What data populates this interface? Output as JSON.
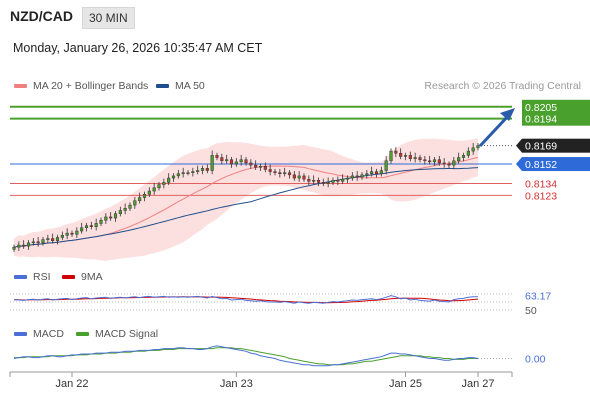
{
  "header": {
    "pair": "NZD/CAD",
    "timeframe": "30 MIN",
    "datetime": "Monday, January 26, 2026 10:35:47 AM CET"
  },
  "legend": {
    "ma20": "MA 20 + Bollinger Bands",
    "ma50": "MA 50",
    "credit": "Research © 2026 Trading Central",
    "colors": {
      "ma20": "#f08080",
      "ma50": "#1f4e8c"
    }
  },
  "rsi_legend": {
    "rsi": "RSI",
    "ma": "9MA",
    "colors": {
      "rsi": "#4a6fd6",
      "ma": "#d00000"
    }
  },
  "macd_legend": {
    "macd": "MACD",
    "signal": "MACD Signal",
    "colors": {
      "macd": "#4a6fd6",
      "signal": "#4aa02c"
    }
  },
  "chart_data": [
    {
      "type": "candlestick",
      "name": "price",
      "x_ticks": [
        "Jan 22",
        "Jan 23",
        "Jan 25",
        "Jan 27"
      ],
      "ylim": [
        0.8065,
        0.8215
      ],
      "close": [
        0.8075,
        0.8077,
        0.8076,
        0.8079,
        0.808,
        0.8079,
        0.8082,
        0.8083,
        0.8081,
        0.8084,
        0.8086,
        0.8088,
        0.8087,
        0.809,
        0.8093,
        0.8095,
        0.8094,
        0.8097,
        0.81,
        0.8103,
        0.8102,
        0.8106,
        0.8109,
        0.8111,
        0.8114,
        0.8118,
        0.8121,
        0.8124,
        0.8127,
        0.813,
        0.8133,
        0.8135,
        0.8139,
        0.8141,
        0.8143,
        0.8144,
        0.8144,
        0.8145,
        0.8146,
        0.8148,
        0.8146,
        0.816,
        0.8158,
        0.8155,
        0.8156,
        0.8152,
        0.8154,
        0.8156,
        0.8153,
        0.8151,
        0.8149,
        0.815,
        0.8147,
        0.8145,
        0.8144,
        0.8143,
        0.8144,
        0.8142,
        0.8139,
        0.8141,
        0.8138,
        0.8136,
        0.8137,
        0.8135,
        0.8134,
        0.8135,
        0.8137,
        0.8136,
        0.8138,
        0.8139,
        0.8141,
        0.814,
        0.8142,
        0.8143,
        0.8145,
        0.8143,
        0.8146,
        0.8155,
        0.8164,
        0.8162,
        0.8159,
        0.816,
        0.8157,
        0.8158,
        0.8156,
        0.8155,
        0.8154,
        0.8156,
        0.8153,
        0.8152,
        0.8151,
        0.8155,
        0.8158,
        0.816,
        0.8164,
        0.8167,
        0.8169
      ],
      "levels": {
        "resistance": [
          0.8205,
          0.8194
        ],
        "pivot": 0.8152,
        "support": [
          0.8134,
          0.8123
        ],
        "last": 0.8169
      },
      "level_labels": [
        "0.8205",
        "0.8194",
        "0.8169",
        "0.8152",
        "0.8134",
        "0.8123"
      ]
    },
    {
      "type": "line",
      "name": "RSI",
      "ylim": [
        20,
        80
      ],
      "values": [
        56,
        55,
        54,
        56,
        57,
        55,
        57,
        58,
        55,
        57,
        58,
        59,
        56,
        58,
        60,
        61,
        58,
        60,
        61,
        62,
        59,
        61,
        62,
        60,
        62,
        63,
        61,
        63,
        64,
        62,
        63,
        64,
        62,
        63,
        62,
        63,
        62,
        63,
        64,
        62,
        60,
        64,
        61,
        58,
        59,
        55,
        56,
        57,
        54,
        53,
        52,
        53,
        51,
        50,
        50,
        49,
        51,
        49,
        47,
        50,
        48,
        47,
        49,
        48,
        47,
        49,
        51,
        50,
        52,
        53,
        55,
        54,
        56,
        57,
        58,
        56,
        58,
        62,
        66,
        63,
        58,
        60,
        55,
        57,
        54,
        53,
        52,
        55,
        52,
        51,
        50,
        56,
        58,
        59,
        62,
        63,
        63.17
      ],
      "last_label": "63.17",
      "ref_labels": [
        "50"
      ]
    },
    {
      "type": "line",
      "name": "MACD",
      "ylim": [
        -0.0015,
        0.0015
      ],
      "macd": [
        0.0,
        0.0001,
        0.0002,
        0.0002,
        0.0001,
        0.0001,
        0.0002,
        0.0003,
        0.0003,
        0.0002,
        0.0002,
        0.0003,
        0.0004,
        0.0004,
        0.0005,
        0.0005,
        0.0005,
        0.0006,
        0.0006,
        0.0006,
        0.0007,
        0.0007,
        0.0007,
        0.0008,
        0.0008,
        0.0008,
        0.0009,
        0.0009,
        0.0009,
        0.001,
        0.001,
        0.0011,
        0.0011,
        0.0011,
        0.0012,
        0.0012,
        0.0011,
        0.0011,
        0.001,
        0.001,
        0.0011,
        0.0013,
        0.0014,
        0.0013,
        0.0012,
        0.0011,
        0.001,
        0.0009,
        0.0008,
        0.0006,
        0.0005,
        0.0003,
        0.0002,
        0.0001,
        0.0,
        -0.0002,
        -0.0003,
        -0.0004,
        -0.0005,
        -0.0006,
        -0.0007,
        -0.0007,
        -0.0008,
        -0.0008,
        -0.0008,
        -0.0008,
        -0.0007,
        -0.0007,
        -0.0006,
        -0.0005,
        -0.0004,
        -0.0003,
        -0.0002,
        -0.0001,
        0.0,
        0.0001,
        0.0002,
        0.0004,
        0.0006,
        0.0006,
        0.0005,
        0.0005,
        0.0004,
        0.0003,
        0.0002,
        0.0001,
        0.0,
        0.0,
        -0.0001,
        -0.0002,
        -0.0002,
        -0.0001,
        0.0,
        0.0,
        0.0001,
        0.0001,
        0.0
      ],
      "signal": [
        0.0001,
        0.0001,
        0.0001,
        0.0002,
        0.0002,
        0.0002,
        0.0002,
        0.0002,
        0.0003,
        0.0003,
        0.0003,
        0.0003,
        0.0003,
        0.0004,
        0.0004,
        0.0004,
        0.0005,
        0.0005,
        0.0005,
        0.0006,
        0.0006,
        0.0006,
        0.0007,
        0.0007,
        0.0007,
        0.0008,
        0.0008,
        0.0008,
        0.0009,
        0.0009,
        0.0009,
        0.001,
        0.001,
        0.001,
        0.0011,
        0.0011,
        0.0011,
        0.0011,
        0.0011,
        0.0011,
        0.0011,
        0.0011,
        0.0012,
        0.0012,
        0.0012,
        0.0012,
        0.0011,
        0.0011,
        0.001,
        0.0009,
        0.0008,
        0.0007,
        0.0006,
        0.0005,
        0.0004,
        0.0003,
        0.0002,
        0.0,
        -0.0001,
        -0.0002,
        -0.0003,
        -0.0004,
        -0.0005,
        -0.0006,
        -0.0006,
        -0.0007,
        -0.0007,
        -0.0007,
        -0.0007,
        -0.0006,
        -0.0006,
        -0.0005,
        -0.0004,
        -0.0003,
        -0.0003,
        -0.0002,
        -0.0001,
        0.0,
        0.0001,
        0.0002,
        0.0003,
        0.0003,
        0.0003,
        0.0003,
        0.0003,
        0.0002,
        0.0002,
        0.0001,
        0.0001,
        0.0,
        0.0,
        -0.0001,
        -0.0001,
        -0.0001,
        0.0,
        0.0,
        0.0
      ],
      "last_label": "0.00"
    }
  ]
}
